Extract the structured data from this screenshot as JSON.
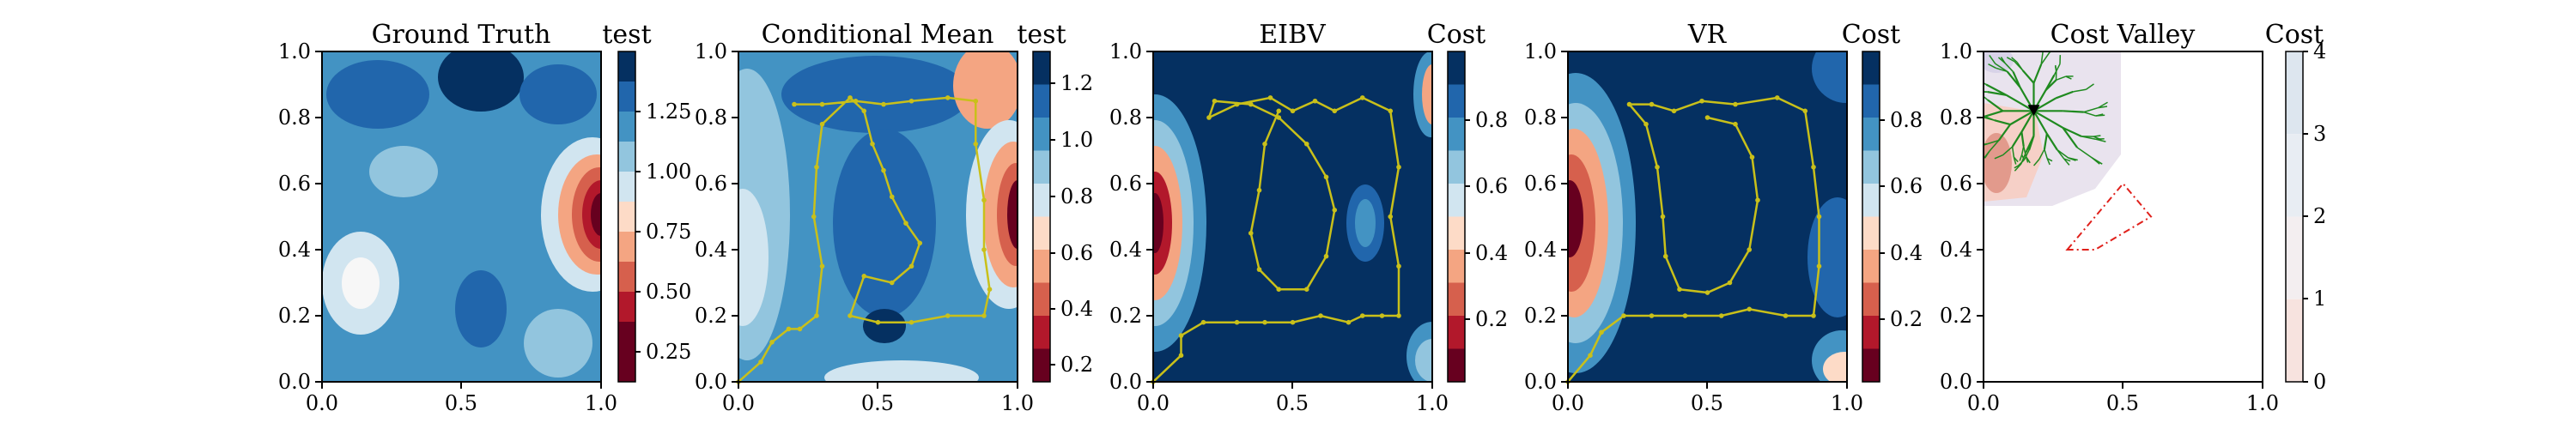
{
  "figure": {
    "panels": [
      {
        "id": "gt",
        "title": "Ground Truth",
        "cbar_label": "test",
        "cbar_ticks": [
          "0.25",
          "0.50",
          "0.75",
          "1.00",
          "1.25"
        ],
        "x_ticks": [
          "0.0",
          "0.5",
          "1.0"
        ],
        "y_ticks": [
          "0.0",
          "0.2",
          "0.4",
          "0.6",
          "0.8",
          "1.0"
        ]
      },
      {
        "id": "cm",
        "title": "Conditional Mean",
        "cbar_label": "test",
        "cbar_ticks": [
          "0.2",
          "0.4",
          "0.6",
          "0.8",
          "1.0",
          "1.2"
        ],
        "x_ticks": [
          "0.0",
          "0.5",
          "1.0"
        ],
        "y_ticks": [
          "0.0",
          "0.2",
          "0.4",
          "0.6",
          "0.8",
          "1.0"
        ]
      },
      {
        "id": "eibv",
        "title": "EIBV",
        "cbar_label": "Cost",
        "cbar_ticks": [
          "0.2",
          "0.4",
          "0.6",
          "0.8"
        ],
        "x_ticks": [
          "0.0",
          "0.5",
          "1.0"
        ],
        "y_ticks": [
          "0.0",
          "0.2",
          "0.4",
          "0.6",
          "0.8",
          "1.0"
        ]
      },
      {
        "id": "vr",
        "title": "VR",
        "cbar_label": "Cost",
        "cbar_ticks": [
          "0.2",
          "0.4",
          "0.6",
          "0.8"
        ],
        "x_ticks": [
          "0.0",
          "0.5",
          "1.0"
        ],
        "y_ticks": [
          "0.0",
          "0.2",
          "0.4",
          "0.6",
          "0.8",
          "1.0"
        ]
      },
      {
        "id": "cv",
        "title": "Cost Valley",
        "cbar_label": "Cost",
        "cbar_ticks": [
          "0",
          "1",
          "2",
          "3",
          "4"
        ],
        "x_ticks": [
          "0.0",
          "0.5",
          "1.0"
        ],
        "y_ticks": [
          "0.0",
          "0.2",
          "0.4",
          "0.6",
          "0.8",
          "1.0"
        ]
      }
    ]
  },
  "colors": {
    "palette_rdbu": [
      "#67001f",
      "#b2182b",
      "#d6604d",
      "#f4a582",
      "#fddbc7",
      "#f7f7f7",
      "#d1e5f0",
      "#92c5de",
      "#4393c3",
      "#2166ac",
      "#053061"
    ],
    "path": "#c9c01a",
    "tree": "#1f8a1f",
    "polygon": "#e0201b",
    "marker": "#000000"
  },
  "chart_data": [
    {
      "panel": "Ground Truth",
      "type": "heatmap",
      "xlim": [
        0,
        1
      ],
      "ylim": [
        0,
        1
      ],
      "colorbar": {
        "label": "test",
        "range": [
          0.15,
          1.4
        ]
      },
      "description_values": "filled contour field; low region near x=0.95, y=0.5"
    },
    {
      "panel": "Conditional Mean",
      "type": "heatmap",
      "xlim": [
        0,
        1
      ],
      "ylim": [
        0,
        1
      ],
      "colorbar": {
        "label": "test",
        "range": [
          0.15,
          1.3
        ]
      },
      "path": [
        [
          0,
          0
        ],
        [
          0.08,
          0.06
        ],
        [
          0.12,
          0.12
        ],
        [
          0.18,
          0.16
        ],
        [
          0.22,
          0.16
        ],
        [
          0.28,
          0.2
        ],
        [
          0.3,
          0.35
        ],
        [
          0.27,
          0.5
        ],
        [
          0.28,
          0.65
        ],
        [
          0.3,
          0.78
        ],
        [
          0.4,
          0.86
        ],
        [
          0.45,
          0.82
        ],
        [
          0.48,
          0.72
        ],
        [
          0.52,
          0.64
        ],
        [
          0.55,
          0.56
        ],
        [
          0.6,
          0.48
        ],
        [
          0.65,
          0.42
        ],
        [
          0.62,
          0.35
        ],
        [
          0.55,
          0.3
        ],
        [
          0.45,
          0.32
        ],
        [
          0.4,
          0.2
        ],
        [
          0.5,
          0.18
        ],
        [
          0.62,
          0.18
        ],
        [
          0.75,
          0.2
        ],
        [
          0.88,
          0.2
        ],
        [
          0.9,
          0.28
        ],
        [
          0.88,
          0.4
        ],
        [
          0.88,
          0.55
        ],
        [
          0.85,
          0.72
        ],
        [
          0.85,
          0.85
        ],
        [
          0.75,
          0.86
        ],
        [
          0.62,
          0.85
        ],
        [
          0.52,
          0.84
        ],
        [
          0.42,
          0.85
        ],
        [
          0.3,
          0.84
        ],
        [
          0.2,
          0.84
        ]
      ]
    },
    {
      "panel": "EIBV",
      "type": "heatmap",
      "xlim": [
        0,
        1
      ],
      "ylim": [
        0,
        1
      ],
      "colorbar": {
        "label": "Cost",
        "range": [
          0.0,
          1.0
        ]
      },
      "path": [
        [
          0,
          0
        ],
        [
          0.1,
          0.08
        ],
        [
          0.1,
          0.14
        ],
        [
          0.18,
          0.18
        ],
        [
          0.3,
          0.18
        ],
        [
          0.4,
          0.18
        ],
        [
          0.5,
          0.18
        ],
        [
          0.6,
          0.2
        ],
        [
          0.7,
          0.18
        ],
        [
          0.75,
          0.2
        ],
        [
          0.82,
          0.2
        ],
        [
          0.88,
          0.2
        ],
        [
          0.88,
          0.35
        ],
        [
          0.85,
          0.5
        ],
        [
          0.88,
          0.65
        ],
        [
          0.85,
          0.82
        ],
        [
          0.75,
          0.86
        ],
        [
          0.65,
          0.82
        ],
        [
          0.58,
          0.85
        ],
        [
          0.5,
          0.82
        ],
        [
          0.42,
          0.86
        ],
        [
          0.3,
          0.84
        ],
        [
          0.2,
          0.8
        ],
        [
          0.22,
          0.85
        ],
        [
          0.35,
          0.84
        ],
        [
          0.45,
          0.8
        ],
        [
          0.55,
          0.72
        ],
        [
          0.62,
          0.62
        ],
        [
          0.65,
          0.52
        ],
        [
          0.62,
          0.38
        ],
        [
          0.55,
          0.28
        ],
        [
          0.45,
          0.28
        ],
        [
          0.38,
          0.34
        ],
        [
          0.35,
          0.45
        ],
        [
          0.38,
          0.58
        ],
        [
          0.4,
          0.72
        ],
        [
          0.45,
          0.82
        ]
      ]
    },
    {
      "panel": "VR",
      "type": "heatmap",
      "xlim": [
        0,
        1
      ],
      "ylim": [
        0,
        1
      ],
      "colorbar": {
        "label": "Cost",
        "range": [
          0.0,
          1.0
        ]
      },
      "path": [
        [
          0,
          0
        ],
        [
          0.08,
          0.08
        ],
        [
          0.12,
          0.15
        ],
        [
          0.2,
          0.2
        ],
        [
          0.3,
          0.2
        ],
        [
          0.42,
          0.2
        ],
        [
          0.55,
          0.2
        ],
        [
          0.65,
          0.22
        ],
        [
          0.78,
          0.2
        ],
        [
          0.88,
          0.2
        ],
        [
          0.9,
          0.35
        ],
        [
          0.9,
          0.5
        ],
        [
          0.88,
          0.65
        ],
        [
          0.85,
          0.82
        ],
        [
          0.75,
          0.86
        ],
        [
          0.6,
          0.84
        ],
        [
          0.48,
          0.85
        ],
        [
          0.38,
          0.82
        ],
        [
          0.3,
          0.84
        ],
        [
          0.22,
          0.84
        ],
        [
          0.28,
          0.78
        ],
        [
          0.32,
          0.65
        ],
        [
          0.34,
          0.5
        ],
        [
          0.35,
          0.38
        ],
        [
          0.4,
          0.28
        ],
        [
          0.5,
          0.27
        ],
        [
          0.58,
          0.3
        ],
        [
          0.65,
          0.4
        ],
        [
          0.68,
          0.55
        ],
        [
          0.66,
          0.68
        ],
        [
          0.6,
          0.78
        ],
        [
          0.5,
          0.8
        ]
      ]
    },
    {
      "panel": "Cost Valley",
      "type": "heatmap",
      "xlim": [
        0,
        1
      ],
      "ylim": [
        0,
        1
      ],
      "colorbar": {
        "label": "Cost",
        "range": [
          0,
          4
        ]
      },
      "marker": [
        0.18,
        0.82
      ],
      "polygon": [
        [
          0.3,
          0.4
        ],
        [
          0.5,
          0.6
        ],
        [
          0.6,
          0.5
        ],
        [
          0.4,
          0.4
        ]
      ]
    }
  ]
}
